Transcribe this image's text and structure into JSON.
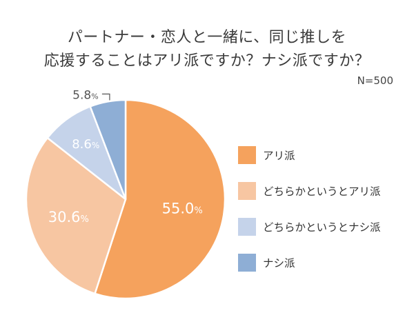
{
  "title_lines": [
    "パートナー・恋人と一緒に、同じ推しを",
    "応援することはアリ派ですか？ナシ派ですか？"
  ],
  "sample_size": "N=500",
  "colors": {
    "ari": "#f5a25d",
    "maybe_ari": "#f7c6a2",
    "maybe_nashi": "#c5d3ea",
    "nashi": "#8eaed5",
    "label_light": "#ffffff",
    "label_dark": "#555555"
  },
  "chart_data": {
    "type": "pie",
    "title": "パートナー・恋人と一緒に、同じ推しを応援することはアリ派ですか？ナシ派ですか？",
    "unit": "%",
    "legend_position": "right",
    "start": "12 o'clock, clockwise",
    "slices": [
      {
        "label": "アリ派",
        "value": 55.0,
        "display_value": "55.0",
        "color": "#f5a25d"
      },
      {
        "label": "どちらかというとアリ派",
        "value": 30.6,
        "display_value": "30.6",
        "color": "#f7c6a2"
      },
      {
        "label": "どちらかというとナシ派",
        "value": 8.6,
        "display_value": "8.6",
        "color": "#c5d3ea"
      },
      {
        "label": "ナシ派",
        "value": 5.8,
        "display_value": "5.8",
        "color": "#8eaed5"
      }
    ]
  }
}
